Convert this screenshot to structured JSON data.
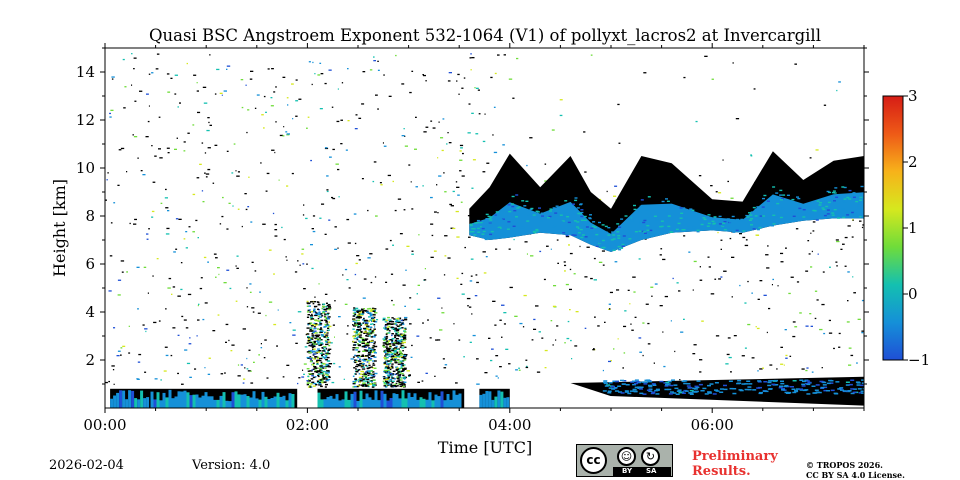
{
  "chart_data": {
    "type": "heatmap",
    "title": "Quasi BSC Angstroem Exponent 532-1064 (V1) of pollyxt_lacros2 at Invercargill",
    "xlabel": "Time [UTC]",
    "ylabel": "Height [km]",
    "xlim": [
      0,
      7.5
    ],
    "ylim": [
      0,
      15
    ],
    "x_ticks": [
      0,
      2,
      4,
      6
    ],
    "x_tick_labels": [
      "00:00",
      "02:00",
      "04:00",
      "06:00"
    ],
    "y_ticks": [
      2,
      4,
      6,
      8,
      10,
      12,
      14
    ],
    "y_tick_labels": [
      "2",
      "4",
      "6",
      "8",
      "10",
      "12",
      "14"
    ],
    "colorbar": {
      "range": [
        -1,
        3
      ],
      "ticks": [
        3,
        2,
        1,
        0,
        -1
      ],
      "tick_labels": [
        "3",
        "2",
        "1",
        "0",
        "−1"
      ],
      "colormap": [
        "#1f4fd6",
        "#1590d8",
        "#14c0b0",
        "#6fdc3a",
        "#d6e81e",
        "#f7b21a",
        "#ee5a17",
        "#d61d16"
      ]
    },
    "features": {
      "boundary_layer": {
        "segments": [
          [
            0.05,
            0.45
          ],
          [
            0.45,
            1.9
          ],
          [
            2.1,
            3.55
          ],
          [
            3.7,
            4.0
          ]
        ],
        "top_km": 0.8,
        "value": -0.4
      },
      "lower_layer_late": {
        "start": 4.6,
        "end": 7.5,
        "base_km": 0.1,
        "top_km": 1.3,
        "value": -0.3
      },
      "cirrus_band": {
        "time": [
          3.6,
          3.8,
          4.0,
          4.3,
          4.6,
          4.8,
          5.0,
          5.3,
          5.6,
          6.0,
          6.3,
          6.6,
          6.9,
          7.2,
          7.5
        ],
        "base_km": [
          7.2,
          7.0,
          7.1,
          7.3,
          7.2,
          6.8,
          6.5,
          7.0,
          7.3,
          7.4,
          7.3,
          7.6,
          7.8,
          7.9,
          7.9
        ],
        "top_km": [
          8.3,
          9.2,
          10.6,
          9.2,
          10.5,
          9.0,
          8.3,
          10.5,
          10.2,
          8.7,
          8.6,
          10.7,
          9.5,
          10.3,
          10.5
        ],
        "value": -0.5
      },
      "streaks": [
        {
          "time": 2.1,
          "top_km": 4.5
        },
        {
          "time": 2.55,
          "top_km": 4.2
        },
        {
          "time": 2.85,
          "top_km": 3.8
        }
      ]
    }
  },
  "footer": {
    "date": "2026-02-04",
    "version": "Version: 4.0",
    "preliminary_line1": "Preliminary",
    "preliminary_line2": "Results.",
    "copyright_line1": "© TROPOS 2026.",
    "copyright_line2": "CC BY SA 4.0 License."
  },
  "license_badge": {
    "cc": "cc",
    "by": "BY",
    "sa": "SA"
  }
}
